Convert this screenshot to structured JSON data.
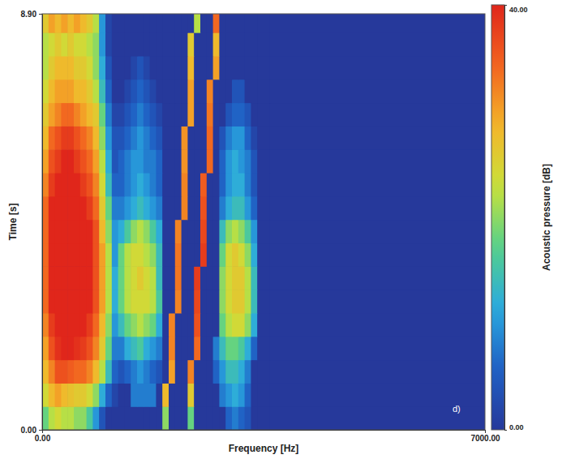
{
  "chart_data": {
    "type": "heatmap",
    "x_label": "Frequency [Hz]",
    "y_label": "Time [s]",
    "annotation": "d)",
    "xlim": [
      0,
      7000
    ],
    "ylim": [
      0,
      8.9
    ],
    "xticks": [
      {
        "value": 0,
        "label": "0.00"
      },
      {
        "value": 7000,
        "label": "7000.00"
      }
    ],
    "yticks": [
      {
        "value": 0,
        "label": "0.00"
      },
      {
        "value": 8.9,
        "label": "8.90"
      }
    ],
    "x_edges": [
      0,
      100,
      200,
      300,
      400,
      500,
      600,
      700,
      800,
      900,
      1000,
      1100,
      1200,
      1300,
      1400,
      1500,
      1600,
      1700,
      1800,
      1900,
      2000,
      2100,
      2200,
      2300,
      2400,
      2500,
      2600,
      2700,
      2800,
      2900,
      3000,
      3100,
      3200,
      3300,
      3400,
      3500,
      3600,
      7000
    ],
    "y_edges": [
      0,
      0.5,
      1,
      1.5,
      2,
      2.5,
      3,
      3.5,
      4,
      4.5,
      5,
      5.5,
      6,
      6.5,
      7,
      7.5,
      8,
      8.5,
      8.9
    ],
    "values": [
      [
        18,
        22,
        24,
        22,
        22,
        20,
        20,
        16,
        10,
        4,
        0,
        0,
        0,
        0,
        0,
        0,
        0,
        0,
        0,
        20,
        0,
        0,
        0,
        18,
        0,
        0,
        0,
        0,
        0,
        6,
        8,
        6,
        4,
        0,
        0,
        0,
        0
      ],
      [
        24,
        28,
        30,
        28,
        27,
        26,
        26,
        24,
        20,
        12,
        6,
        2,
        0,
        0,
        8,
        8,
        8,
        8,
        0,
        28,
        0,
        0,
        0,
        26,
        0,
        0,
        0,
        0,
        8,
        10,
        12,
        10,
        6,
        0,
        0,
        0,
        0
      ],
      [
        28,
        32,
        36,
        36,
        35,
        34,
        34,
        32,
        28,
        22,
        14,
        6,
        4,
        6,
        8,
        10,
        8,
        6,
        4,
        0,
        30,
        0,
        0,
        32,
        0,
        0,
        0,
        6,
        10,
        14,
        14,
        12,
        8,
        0,
        0,
        0,
        0
      ],
      [
        30,
        36,
        39,
        40,
        40,
        39,
        38,
        36,
        32,
        26,
        18,
        8,
        8,
        12,
        14,
        16,
        12,
        10,
        8,
        0,
        32,
        0,
        0,
        0,
        34,
        0,
        0,
        8,
        14,
        18,
        18,
        16,
        12,
        6,
        0,
        0,
        0
      ],
      [
        32,
        38,
        40,
        40,
        40,
        40,
        40,
        38,
        34,
        28,
        20,
        10,
        14,
        18,
        20,
        22,
        20,
        18,
        12,
        0,
        32,
        0,
        0,
        0,
        36,
        0,
        0,
        0,
        18,
        22,
        24,
        24,
        20,
        12,
        0,
        0,
        0
      ],
      [
        34,
        40,
        40,
        40,
        40,
        40,
        40,
        40,
        36,
        30,
        22,
        12,
        18,
        22,
        24,
        24,
        24,
        22,
        16,
        0,
        0,
        32,
        0,
        0,
        37,
        0,
        0,
        0,
        20,
        24,
        26,
        26,
        22,
        14,
        0,
        0,
        0
      ],
      [
        34,
        40,
        40,
        40,
        40,
        40,
        40,
        40,
        36,
        30,
        22,
        12,
        18,
        22,
        24,
        26,
        24,
        22,
        14,
        0,
        0,
        33,
        0,
        0,
        38,
        0,
        0,
        0,
        20,
        24,
        26,
        26,
        22,
        14,
        0,
        0,
        0
      ],
      [
        34,
        40,
        40,
        40,
        40,
        40,
        40,
        40,
        36,
        30,
        22,
        10,
        18,
        22,
        24,
        24,
        22,
        20,
        14,
        0,
        0,
        33,
        0,
        0,
        0,
        38,
        0,
        0,
        18,
        24,
        26,
        24,
        20,
        12,
        0,
        0,
        0
      ],
      [
        34,
        40,
        40,
        40,
        40,
        40,
        40,
        40,
        36,
        28,
        20,
        10,
        12,
        16,
        20,
        22,
        20,
        16,
        12,
        0,
        0,
        32,
        0,
        0,
        0,
        37,
        0,
        0,
        14,
        20,
        22,
        20,
        16,
        10,
        0,
        0,
        0
      ],
      [
        34,
        40,
        40,
        40,
        40,
        40,
        40,
        38,
        34,
        26,
        18,
        8,
        8,
        10,
        12,
        14,
        12,
        10,
        8,
        0,
        0,
        0,
        32,
        0,
        0,
        36,
        0,
        0,
        8,
        12,
        14,
        14,
        10,
        6,
        0,
        0,
        0
      ],
      [
        32,
        38,
        40,
        40,
        40,
        40,
        38,
        36,
        32,
        24,
        14,
        6,
        6,
        8,
        10,
        12,
        10,
        8,
        6,
        0,
        0,
        0,
        32,
        0,
        0,
        35,
        0,
        0,
        6,
        10,
        12,
        12,
        8,
        4,
        0,
        0,
        0
      ],
      [
        30,
        36,
        38,
        40,
        40,
        38,
        36,
        34,
        30,
        22,
        12,
        4,
        6,
        8,
        10,
        10,
        8,
        8,
        6,
        0,
        0,
        0,
        31,
        0,
        0,
        0,
        34,
        0,
        6,
        10,
        12,
        10,
        8,
        4,
        0,
        0,
        0
      ],
      [
        28,
        34,
        36,
        38,
        38,
        36,
        34,
        32,
        28,
        20,
        10,
        4,
        4,
        6,
        8,
        10,
        8,
        6,
        4,
        0,
        0,
        0,
        31,
        0,
        0,
        0,
        34,
        0,
        4,
        8,
        10,
        10,
        6,
        2,
        0,
        0,
        0
      ],
      [
        26,
        30,
        32,
        34,
        34,
        32,
        30,
        28,
        26,
        18,
        8,
        2,
        2,
        4,
        6,
        8,
        6,
        4,
        2,
        0,
        0,
        0,
        0,
        30,
        0,
        0,
        33,
        0,
        0,
        4,
        6,
        6,
        4,
        0,
        0,
        0,
        0
      ],
      [
        24,
        28,
        30,
        30,
        30,
        28,
        28,
        26,
        22,
        14,
        6,
        0,
        0,
        2,
        4,
        6,
        4,
        2,
        0,
        0,
        0,
        0,
        0,
        30,
        0,
        0,
        32,
        0,
        0,
        0,
        4,
        4,
        0,
        0,
        0,
        0,
        0
      ],
      [
        22,
        26,
        28,
        28,
        28,
        26,
        26,
        24,
        20,
        12,
        4,
        0,
        0,
        0,
        2,
        4,
        2,
        0,
        0,
        0,
        0,
        0,
        0,
        28,
        0,
        0,
        0,
        30,
        0,
        0,
        0,
        0,
        0,
        0,
        0,
        0,
        0
      ],
      [
        22,
        24,
        26,
        24,
        26,
        24,
        24,
        22,
        20,
        10,
        2,
        0,
        0,
        0,
        0,
        0,
        0,
        0,
        0,
        0,
        0,
        0,
        0,
        26,
        0,
        0,
        0,
        28,
        0,
        0,
        0,
        0,
        0,
        0,
        0,
        0,
        0
      ],
      [
        26,
        30,
        28,
        30,
        28,
        30,
        28,
        26,
        22,
        10,
        2,
        0,
        0,
        0,
        0,
        0,
        0,
        0,
        0,
        0,
        0,
        0,
        0,
        0,
        22,
        0,
        0,
        34,
        0,
        0,
        0,
        0,
        0,
        0,
        0,
        0,
        0
      ]
    ],
    "colorbar": {
      "label": "Acoustic pressure [dB]",
      "range": [
        0,
        40
      ],
      "ticks": [
        {
          "value": 0,
          "label": "0.00"
        },
        {
          "value": 40,
          "label": "40.00"
        }
      ]
    }
  }
}
